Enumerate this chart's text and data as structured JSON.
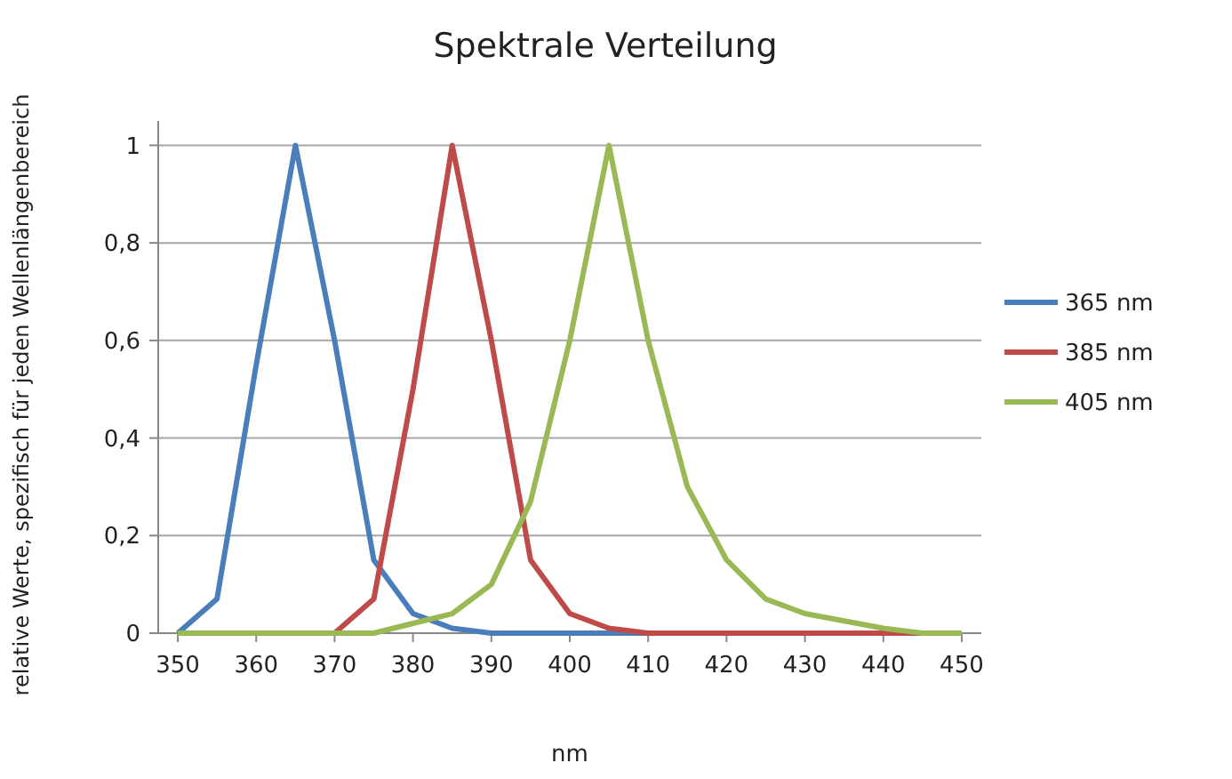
{
  "chart_data": {
    "type": "line",
    "title": "Spektrale Verteilung",
    "xlabel": "nm",
    "ylabel": "relative Werte, spezifisch für jeden Wellenlängenbereich",
    "x": [
      350,
      355,
      360,
      365,
      370,
      375,
      380,
      385,
      390,
      395,
      400,
      405,
      410,
      415,
      420,
      425,
      430,
      435,
      440,
      445,
      450
    ],
    "series": [
      {
        "name": "365 nm",
        "color": "#4a7ebb",
        "values": [
          0,
          0.07,
          0.55,
          1,
          0.6,
          0.15,
          0.04,
          0.01,
          0,
          0,
          0,
          0,
          0,
          0,
          null,
          null,
          null,
          null,
          null,
          null,
          null
        ]
      },
      {
        "name": "385 nm",
        "color": "#be4b48",
        "values": [
          null,
          null,
          null,
          null,
          0,
          0.07,
          0.5,
          1,
          0.6,
          0.15,
          0.04,
          0.01,
          0,
          0,
          0,
          0,
          0,
          0,
          0,
          0,
          0
        ]
      },
      {
        "name": "405 nm",
        "color": "#98b954",
        "values": [
          0,
          0,
          0,
          0,
          0,
          0,
          0.02,
          0.04,
          0.1,
          0.27,
          0.6,
          1,
          0.6,
          0.3,
          0.15,
          0.07,
          0.04,
          0.025,
          0.01,
          0,
          0
        ]
      }
    ],
    "xlim": [
      347.5,
      452.5
    ],
    "xticks": [
      350,
      360,
      370,
      380,
      390,
      400,
      410,
      420,
      430,
      440,
      450
    ],
    "ylim": [
      0,
      1.05
    ],
    "yticks": [
      0,
      {
        "value": 0.2,
        "label": "0,2"
      },
      {
        "value": 0.4,
        "label": "0,4"
      },
      {
        "value": 0.6,
        "label": "0,6"
      },
      {
        "value": 0.8,
        "label": "0,8"
      },
      1
    ],
    "grid": "y",
    "legend": "right",
    "line_style": "solid",
    "marker": "none"
  }
}
